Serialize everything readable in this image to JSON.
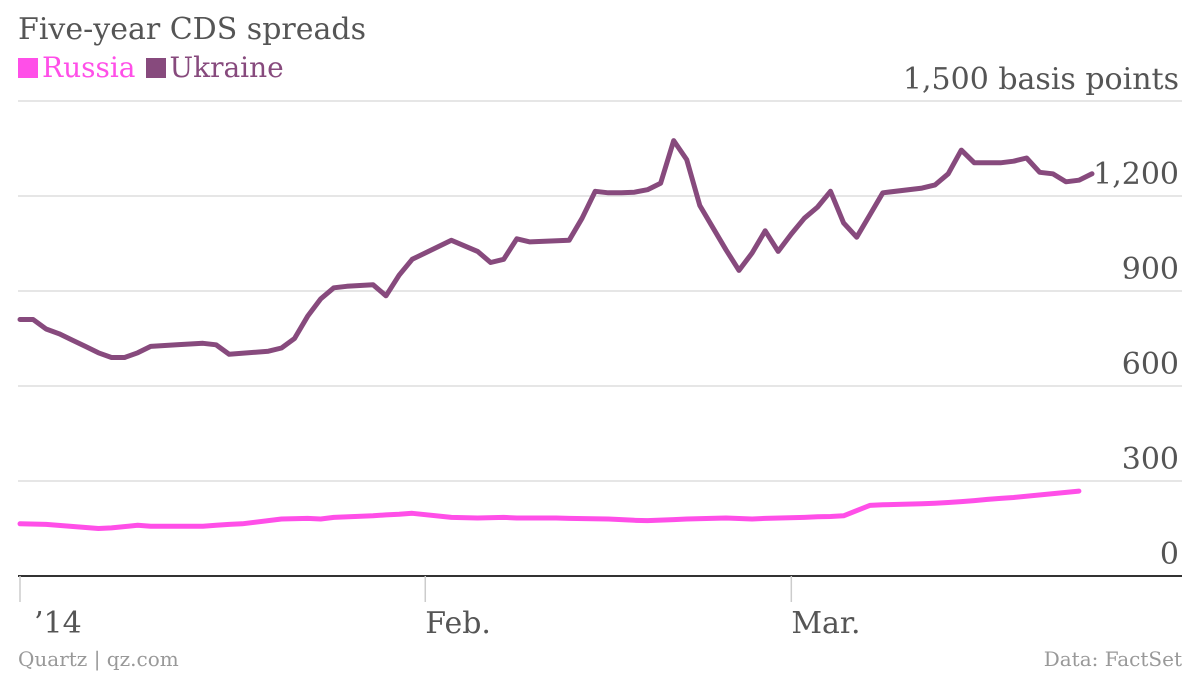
{
  "chart_data": {
    "type": "line",
    "title": "Five-year CDS spreads",
    "ylabel": "",
    "ylim": [
      0,
      1500
    ],
    "yticks": [
      0,
      300,
      600,
      900,
      1200,
      1500
    ],
    "ytick_labels": [
      "0",
      "300",
      "600",
      "900",
      "1,200",
      "1,500 basis points"
    ],
    "xticks": [
      {
        "label": "’14",
        "day": 0
      },
      {
        "label": "Feb.",
        "day": 31
      },
      {
        "label": "Mar.",
        "day": 59
      }
    ],
    "grid": true,
    "legend": "top-left",
    "series": [
      {
        "name": "Russia",
        "color": "#ff4fe8",
        "x": [
          0,
          2,
          6,
          7,
          9,
          10,
          14,
          15,
          16,
          17,
          20,
          22,
          23,
          24,
          27,
          28,
          29,
          30,
          33,
          35,
          37,
          38,
          41,
          42,
          45,
          46,
          47,
          48,
          50,
          51,
          54,
          56,
          57,
          60,
          61,
          62,
          63,
          65,
          66,
          69,
          70,
          71,
          72,
          73,
          74,
          75,
          76,
          81
        ],
        "y": [
          165,
          163,
          150,
          152,
          160,
          157,
          157,
          160,
          163,
          165,
          180,
          182,
          180,
          185,
          190,
          193,
          195,
          198,
          185,
          183,
          185,
          183,
          183,
          182,
          180,
          178,
          176,
          175,
          178,
          180,
          183,
          180,
          182,
          185,
          187,
          188,
          190,
          223,
          225,
          228,
          230,
          232,
          235,
          238,
          242,
          245,
          248,
          268
        ]
      },
      {
        "name": "Ukraine",
        "color": "#874a7d",
        "x": [
          0,
          1,
          2,
          3,
          4,
          5,
          6,
          7,
          8,
          9,
          10,
          12,
          14,
          15,
          16,
          19,
          20,
          21,
          22,
          23,
          24,
          25,
          27,
          28,
          29,
          30,
          33,
          35,
          36,
          37,
          38,
          39,
          42,
          43,
          44,
          45,
          46,
          47,
          48,
          49,
          50,
          51,
          52,
          53,
          54,
          55,
          56,
          57,
          58,
          59,
          60,
          61,
          62,
          63,
          64,
          65,
          66,
          69,
          70,
          71,
          72,
          73,
          74,
          75,
          76,
          77,
          78,
          79,
          80,
          81,
          82
        ],
        "y": [
          810,
          810,
          780,
          765,
          745,
          725,
          705,
          690,
          690,
          705,
          725,
          730,
          735,
          730,
          700,
          710,
          720,
          750,
          820,
          875,
          910,
          915,
          920,
          885,
          950,
          1000,
          1060,
          1025,
          990,
          1000,
          1065,
          1055,
          1060,
          1130,
          1215,
          1210,
          1210,
          1212,
          1220,
          1240,
          1375,
          1315,
          1170,
          1100,
          1030,
          965,
          1020,
          1090,
          1025,
          1080,
          1130,
          1165,
          1215,
          1115,
          1070,
          1140,
          1210,
          1225,
          1235,
          1270,
          1345,
          1305,
          1305,
          1305,
          1310,
          1320,
          1275,
          1270,
          1245,
          1250,
          1270
        ]
      }
    ]
  },
  "footer": {
    "source_left": "Quartz | qz.com",
    "source_right": "Data: FactSet"
  },
  "colors": {
    "text": "#555555",
    "grid": "#dddddd",
    "axis": "#333333",
    "footer": "#999999"
  }
}
